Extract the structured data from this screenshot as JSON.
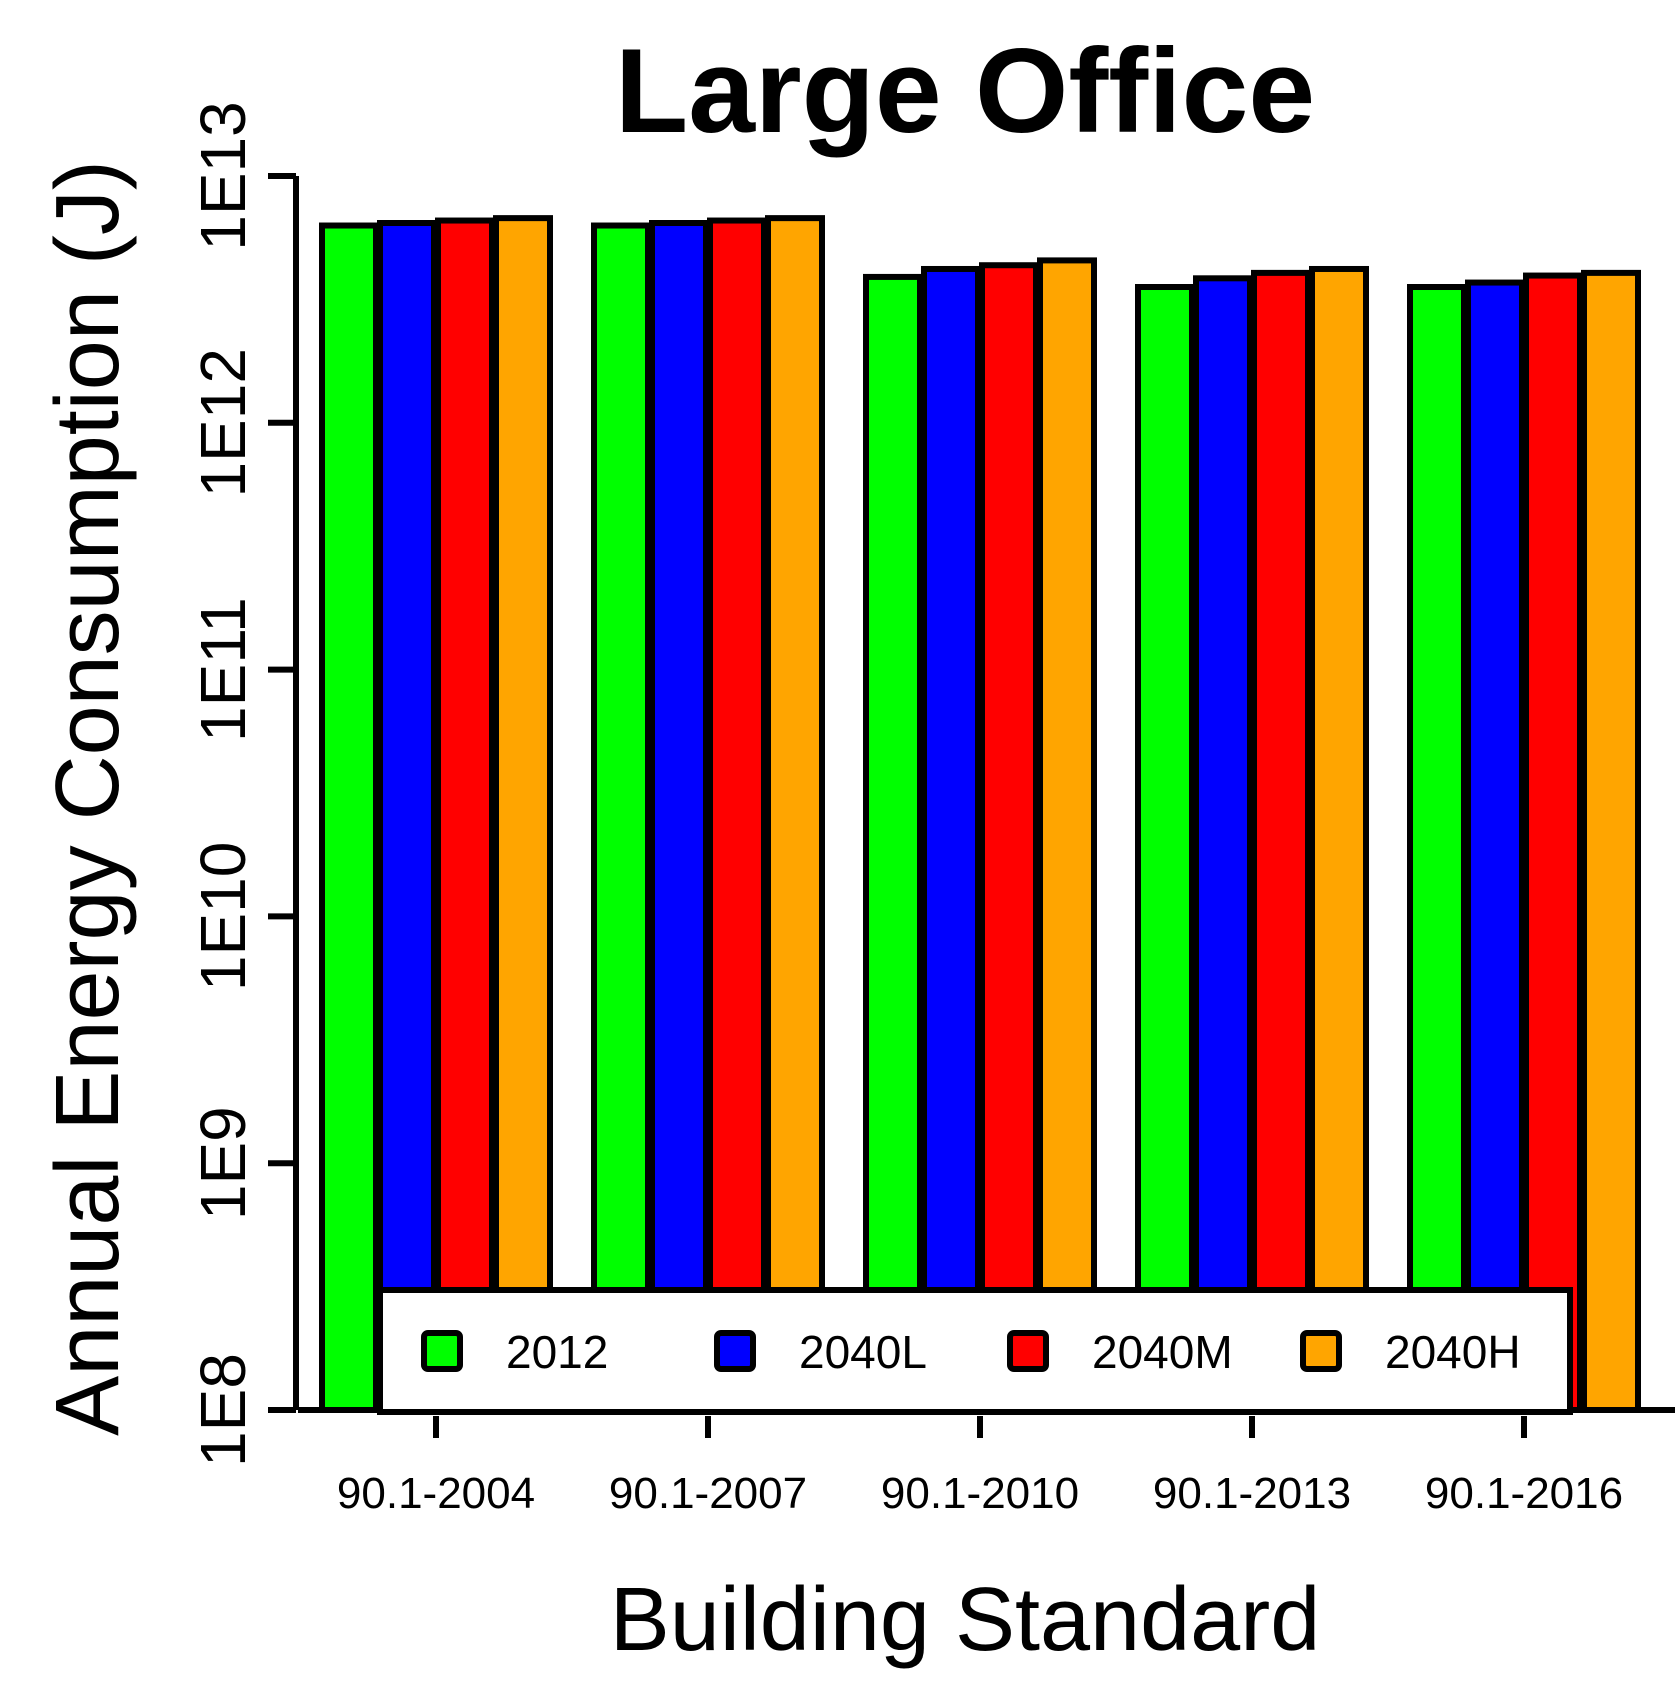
{
  "chart_data": {
    "type": "bar",
    "title": "Large Office",
    "xlabel": "Building Standard",
    "ylabel": "Annual Energy Consumption (J)",
    "y_scale": "log",
    "ylim": [
      100000000,
      10000000000000
    ],
    "y_ticks": [
      {
        "value": 100000000,
        "label": "1E8"
      },
      {
        "value": 1000000000,
        "label": "1E9"
      },
      {
        "value": 10000000000,
        "label": "1E10"
      },
      {
        "value": 100000000000,
        "label": "1E11"
      },
      {
        "value": 1000000000000,
        "label": "1E12"
      },
      {
        "value": 10000000000000,
        "label": "1E13"
      }
    ],
    "categories": [
      "90.1-2004",
      "90.1-2007",
      "90.1-2010",
      "90.1-2013",
      "90.1-2016"
    ],
    "series": [
      {
        "name": "2012",
        "color": "#00ff00",
        "values": [
          6300000000000.0,
          6300000000000.0,
          3900000000000.0,
          3550000000000.0,
          3550000000000.0
        ]
      },
      {
        "name": "2040L",
        "color": "#0000ff",
        "values": [
          6450000000000.0,
          6450000000000.0,
          4200000000000.0,
          3850000000000.0,
          3700000000000.0
        ]
      },
      {
        "name": "2040M",
        "color": "#ff0000",
        "values": [
          6600000000000.0,
          6600000000000.0,
          4350000000000.0,
          4050000000000.0,
          3950000000000.0
        ]
      },
      {
        "name": "2040H",
        "color": "#ffa500",
        "values": [
          6750000000000.0,
          6750000000000.0,
          4550000000000.0,
          4200000000000.0,
          4050000000000.0
        ]
      }
    ],
    "legend": {
      "position": "bottom-inside",
      "ncol": 4
    },
    "grid": false
  }
}
